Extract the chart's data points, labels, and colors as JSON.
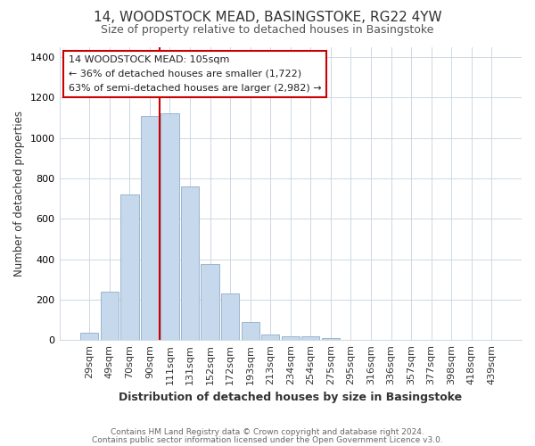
{
  "title": "14, WOODSTOCK MEAD, BASINGSTOKE, RG22 4YW",
  "subtitle": "Size of property relative to detached houses in Basingstoke",
  "xlabel": "Distribution of detached houses by size in Basingstoke",
  "ylabel": "Number of detached properties",
  "footer_line1": "Contains HM Land Registry data © Crown copyright and database right 2024.",
  "footer_line2": "Contains public sector information licensed under the Open Government Licence v3.0.",
  "bar_labels": [
    "29sqm",
    "49sqm",
    "70sqm",
    "90sqm",
    "111sqm",
    "131sqm",
    "152sqm",
    "172sqm",
    "193sqm",
    "213sqm",
    "234sqm",
    "254sqm",
    "275sqm",
    "295sqm",
    "316sqm",
    "336sqm",
    "357sqm",
    "377sqm",
    "398sqm",
    "418sqm",
    "439sqm"
  ],
  "bar_heights": [
    35,
    240,
    720,
    1110,
    1120,
    760,
    375,
    230,
    90,
    28,
    18,
    20,
    12,
    0,
    0,
    0,
    0,
    0,
    0,
    0,
    0
  ],
  "bar_color": "#c5d8ec",
  "bar_edge_color": "#90adc8",
  "vline_color": "#cc0000",
  "vline_x_idx": 3.5,
  "annotation_title": "14 WOODSTOCK MEAD: 105sqm",
  "annotation_line2": "← 36% of detached houses are smaller (1,722)",
  "annotation_line3": "63% of semi-detached houses are larger (2,982) →",
  "annotation_box_color": "#ffffff",
  "annotation_border_color": "#cc0000",
  "ylim": [
    0,
    1450
  ],
  "yticks": [
    0,
    200,
    400,
    600,
    800,
    1000,
    1200,
    1400
  ],
  "background_color": "#ffffff",
  "plot_bg_color": "#ffffff",
  "grid_color": "#cdd8e3",
  "title_color": "#333333",
  "subtitle_color": "#555555",
  "footer_color": "#666666"
}
